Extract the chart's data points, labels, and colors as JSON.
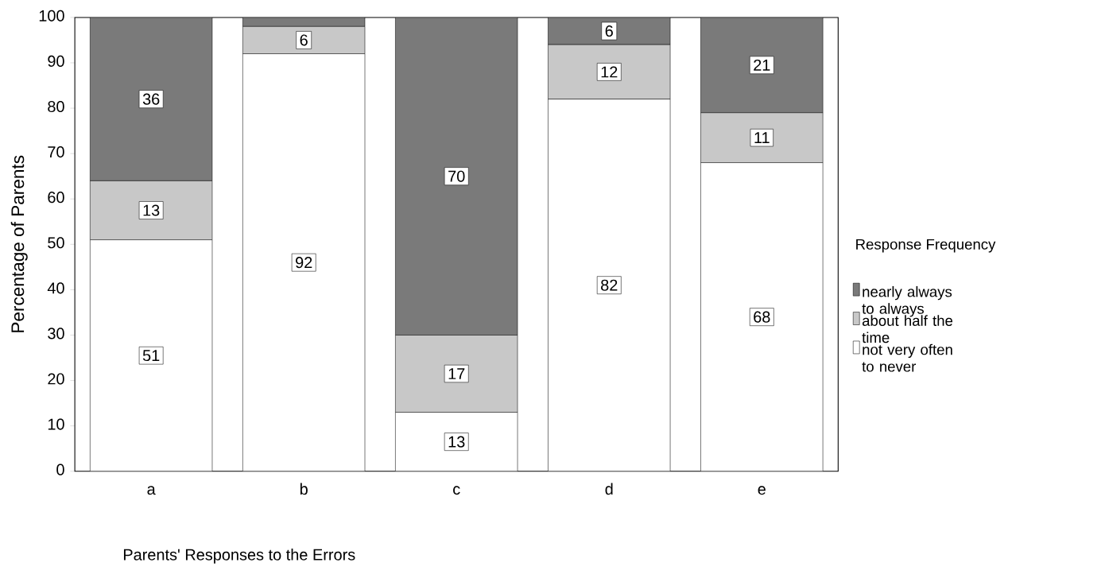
{
  "chart_data": {
    "type": "bar",
    "stacked": true,
    "xlabel": "Parents'  Responses to the Errors",
    "ylabel": "Percentage of  Parents",
    "legend_title": "Response Frequency",
    "categories": [
      "a",
      "b",
      "c",
      "d",
      "e"
    ],
    "series": [
      {
        "name": "not very often to never",
        "color": "#ffffff",
        "values": [
          51,
          92,
          13,
          82,
          68
        ],
        "value_labels": [
          "51",
          "92",
          "13",
          "82",
          "68"
        ]
      },
      {
        "name": "about half the time",
        "color": "#c8c8c8",
        "values": [
          13,
          6,
          17,
          12,
          11
        ],
        "value_labels": [
          "13",
          "6",
          "17",
          "12",
          "11"
        ]
      },
      {
        "name": "nearly always to always",
        "color": "#7a7a7a",
        "values": [
          36,
          2,
          70,
          6,
          21
        ],
        "value_labels": [
          "36",
          null,
          "70",
          "6",
          "21"
        ]
      }
    ],
    "ylim": [
      0,
      100
    ],
    "yticks": [
      0,
      10,
      20,
      30,
      40,
      50,
      60,
      70,
      80,
      90,
      100
    ],
    "legend": "right",
    "grid": false
  }
}
